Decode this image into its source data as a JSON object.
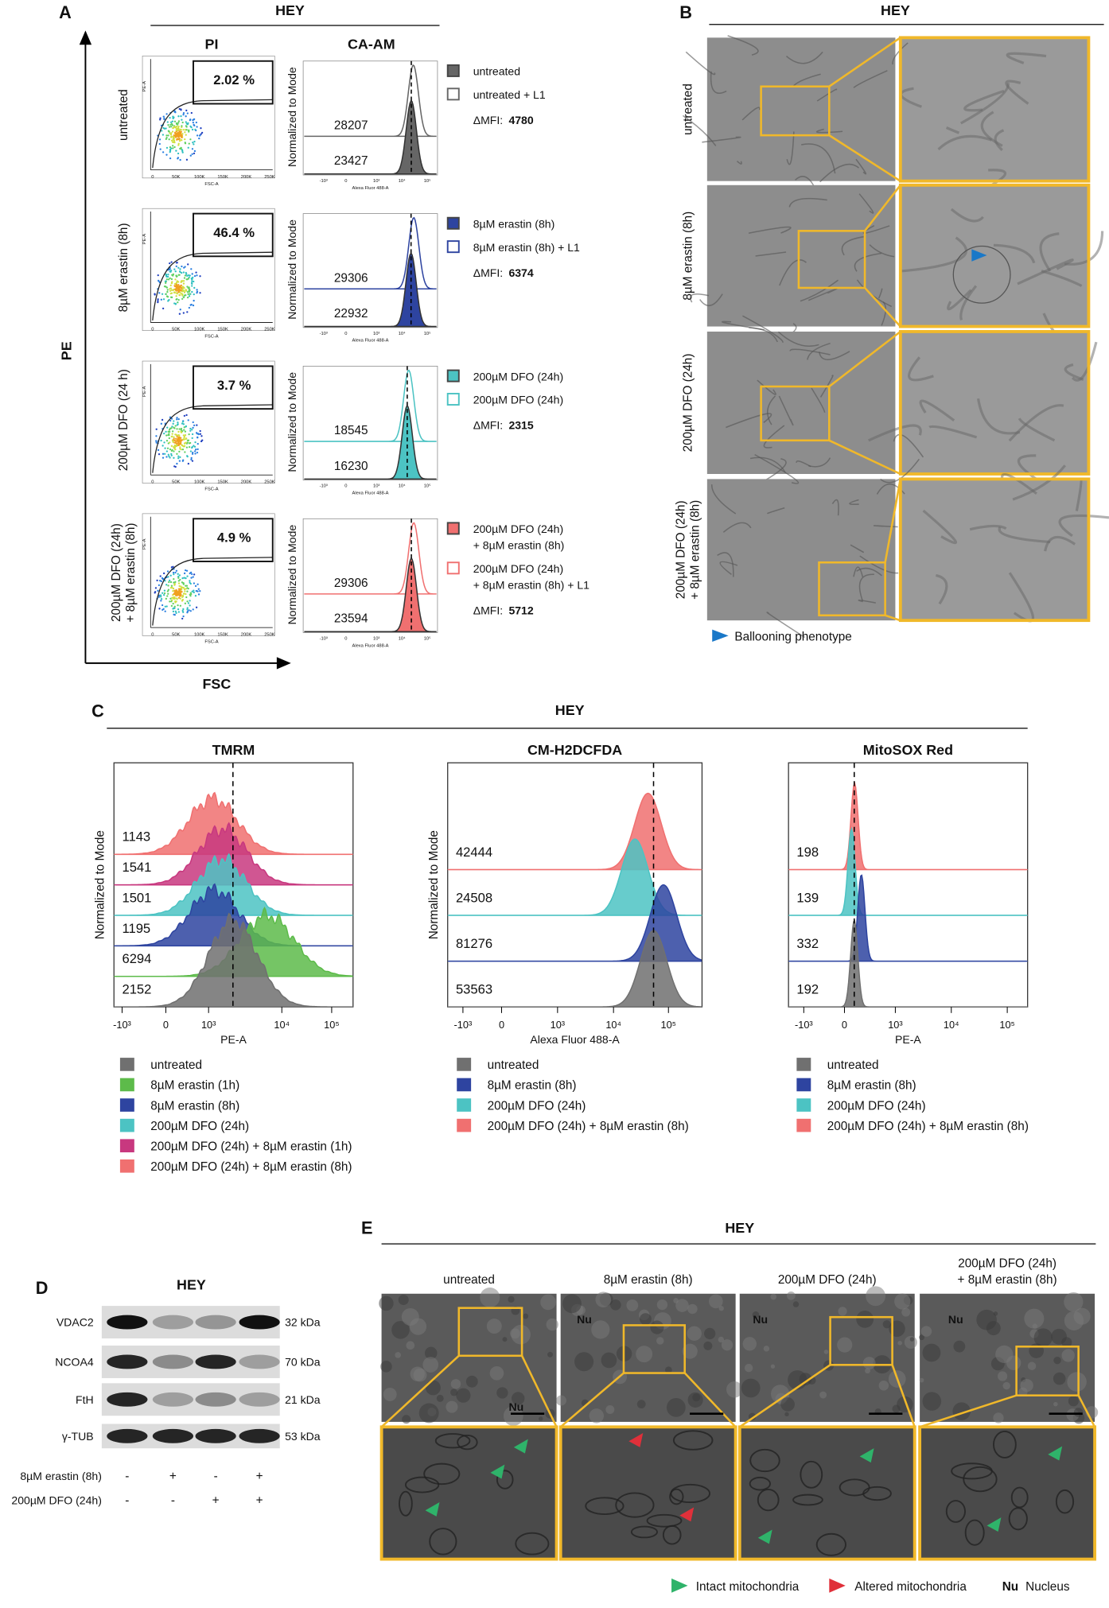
{
  "panel_a": {
    "label": "A",
    "title": "HEY",
    "col_titles": [
      "PI",
      "CA-AM"
    ],
    "y_axis": "PE",
    "x_axis": "FSC",
    "scatter_xlabel": "FSC-A",
    "scatter_ylabel": "PE-A",
    "scatter_xticks": [
      "0",
      "50K",
      "100K",
      "150K",
      "200K",
      "250K"
    ],
    "hist_ylabel": "Normalized to Mode",
    "hist_xlabel": "Alexa Fluor 488-A",
    "hist_xticks": [
      "-10³",
      "0",
      "10³",
      "10⁴",
      "10⁵"
    ],
    "dmfi_prefix": "ΔMFI:",
    "rows": [
      {
        "condition": [
          "untreated"
        ],
        "gate": "2.02 %",
        "mfi_top": "28207",
        "mfi_bottom": "23427",
        "color": "#666666",
        "legend": [
          [
            "untreated"
          ],
          [
            "untreated + L1"
          ]
        ],
        "dmfi": "4780"
      },
      {
        "condition": [
          "8µM erastin (8h)"
        ],
        "gate": "46.4 %",
        "mfi_top": "29306",
        "mfi_bottom": "22932",
        "color": "#2e44a0",
        "legend": [
          [
            "8µM erastin (8h)"
          ],
          [
            "8µM erastin (8h) + L1"
          ]
        ],
        "dmfi": "6374"
      },
      {
        "condition": [
          "200µM DFO (24 h)"
        ],
        "gate": "3.7 %",
        "mfi_top": "18545",
        "mfi_bottom": "16230",
        "color": "#4cc3c3",
        "legend": [
          [
            "200µM DFO (24h)"
          ],
          [
            "200µM DFO (24h)"
          ]
        ],
        "dmfi": "2315"
      },
      {
        "condition": [
          "200µM DFO (24h)",
          "+ 8µM erastin (8h)"
        ],
        "gate": "4.9 %",
        "mfi_top": "29306",
        "mfi_bottom": "23594",
        "color": "#f07070",
        "legend": [
          [
            "200µM DFO (24h)",
            "+ 8µM erastin (8h)"
          ],
          [
            "200µM DFO (24h)",
            "+ 8µM erastin (8h) + L1"
          ]
        ],
        "dmfi": "5712"
      }
    ]
  },
  "panel_b": {
    "label": "B",
    "title": "HEY",
    "rows": [
      [
        "untreated"
      ],
      [
        "8µM erastin (8h)"
      ],
      [
        "200µM DFO (24h)"
      ],
      [
        "200µM DFO (24h)",
        "+ 8µM erastin (8h)"
      ]
    ],
    "legend": "Ballooning phenotype"
  },
  "panel_c": {
    "label": "C",
    "title": "HEY",
    "ylabel": "Normalized to Mode",
    "xticks": [
      "-10³",
      "0",
      "10³",
      "10⁴",
      "10⁵"
    ],
    "plots": [
      {
        "title": "TMRM",
        "xlabel": "PE-A",
        "series": [
          {
            "name": "untreated",
            "color": "#707070",
            "value": "2152"
          },
          {
            "name": "8µM erastin (1h)",
            "color": "#5dbb4a",
            "value": "6294"
          },
          {
            "name": "8µM erastin (8h)",
            "color": "#2e44a0",
            "value": "1195"
          },
          {
            "name": "200µM DFO (24h)",
            "color": "#4cc3c3",
            "value": "1501"
          },
          {
            "name": "200µM DFO (24h) + 8µM erastin (1h)",
            "color": "#c8387f",
            "value": "1541"
          },
          {
            "name": "200µM DFO (24h) + 8µM erastin (8h)",
            "color": "#f07070",
            "value": "1143"
          }
        ]
      },
      {
        "title": "CM-H2DCFDA",
        "xlabel": "Alexa Fluor 488-A",
        "series": [
          {
            "name": "untreated",
            "color": "#707070",
            "value": "53563"
          },
          {
            "name": "8µM erastin (8h)",
            "color": "#2e44a0",
            "value": "81276"
          },
          {
            "name": "200µM DFO (24h)",
            "color": "#4cc3c3",
            "value": "24508"
          },
          {
            "name": "200µM DFO (24h) + 8µM erastin (8h)",
            "color": "#f07070",
            "value": "42444"
          }
        ]
      },
      {
        "title": "MitoSOX Red",
        "xlabel": "PE-A",
        "series": [
          {
            "name": "untreated",
            "color": "#707070",
            "value": "192"
          },
          {
            "name": "8µM erastin (8h)",
            "color": "#2e44a0",
            "value": "332"
          },
          {
            "name": "200µM DFO (24h)",
            "color": "#4cc3c3",
            "value": "139"
          },
          {
            "name": "200µM DFO (24h) + 8µM erastin (8h)",
            "color": "#f07070",
            "value": "198"
          }
        ]
      }
    ]
  },
  "panel_d": {
    "label": "D",
    "title": "HEY",
    "blots": [
      {
        "name": "VDAC2",
        "kda": "32 kDa"
      },
      {
        "name": "NCOA4",
        "kda": "70 kDa"
      },
      {
        "name": "FtH",
        "kda": "21 kDa"
      },
      {
        "name": "γ-TUB",
        "kda": "53 kDa"
      }
    ],
    "treatments": [
      {
        "name": "8µM erastin (8h)",
        "signs": [
          "-",
          "+",
          "-",
          "+"
        ]
      },
      {
        "name": "200µM DFO (24h)",
        "signs": [
          "-",
          "-",
          "+",
          "+"
        ]
      }
    ]
  },
  "panel_e": {
    "label": "E",
    "title": "HEY",
    "columns": [
      {
        "title": [
          "untreated"
        ],
        "nu": "Nu"
      },
      {
        "title": [
          "8µM erastin (8h)"
        ],
        "nu": "Nu"
      },
      {
        "title": [
          "200µM DFO (24h)"
        ],
        "nu": "Nu"
      },
      {
        "title": [
          "200µM DFO (24h)",
          "+ 8µM erastin (8h)"
        ],
        "nu": "Nu"
      }
    ],
    "legend": {
      "intact": "Intact mitochondria",
      "altered": "Altered mitochondria",
      "nu": "Nu",
      "nucleus": "Nucleus"
    }
  }
}
